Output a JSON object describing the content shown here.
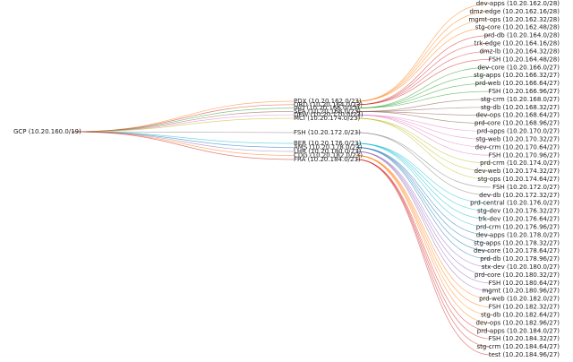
{
  "tree": {
    "label": "GCP (10.20.160.0/19)",
    "children": [
      {
        "label": "PDX (10.20.162.0/23)",
        "color": "#ff7f0e",
        "children": [
          {
            "label": "dev-apps (10.20.162.0/28)"
          },
          {
            "label": "dmz-edge (10.20.162.16/28)"
          },
          {
            "label": "mgmt-ops (10.20.162.32/28)"
          },
          {
            "label": "stg-core (10.20.162.48/28)"
          }
        ]
      },
      {
        "label": "ORD (10.20.164.0/23)",
        "color": "#d62728",
        "children": [
          {
            "label": "prd-db (10.20.164.0/28)"
          },
          {
            "label": "trk-edge (10.20.164.16/28)"
          },
          {
            "label": "dmz-lb (10.20.164.32/28)"
          },
          {
            "label": "FSH (10.20.164.48/28)"
          }
        ]
      },
      {
        "label": "IAD (10.20.166.0/23)",
        "color": "#2ca02c",
        "children": [
          {
            "label": "dev-core (10.20.166.0/27)"
          },
          {
            "label": "stg-apps (10.20.166.32/27)"
          },
          {
            "label": "prd-web (10.20.166.64/27)"
          },
          {
            "label": "FSH (10.20.166.96/27)"
          }
        ]
      },
      {
        "label": "SEA (10.20.168.0/23)",
        "color": "#8c564b",
        "children": [
          {
            "label": "stg-crm (10.20.168.0/27)"
          },
          {
            "label": "stg-db (10.20.168.32/27)"
          },
          {
            "label": "dev-ops (10.20.168.64/27)"
          },
          {
            "label": "prd-core (10.20.168.96/27)"
          }
        ]
      },
      {
        "label": "DFW (10.20.170.0/23)",
        "color": "#e377c2",
        "children": [
          {
            "label": "prd-apps (10.20.170.0/27)"
          },
          {
            "label": "stg-web (10.20.170.32/27)"
          },
          {
            "label": "dev-crm (10.20.170.64/27)"
          },
          {
            "label": "FSH (10.20.170.96/27)"
          }
        ]
      },
      {
        "label": "MCI (10.20.174.0/23)",
        "color": "#bcbd22",
        "children": [
          {
            "label": "prd-crm (10.20.174.0/27)"
          },
          {
            "label": "dev-web (10.20.174.32/27)"
          },
          {
            "label": "stg-ops (10.20.174.64/27)"
          }
        ]
      },
      {
        "label": "FSH (10.20.172.0/23)",
        "color": "#7f7f7f",
        "children": [
          {
            "label": "FSH (10.20.172.0/27)"
          },
          {
            "label": "dev-db (10.20.172.32/27)"
          }
        ]
      },
      {
        "label": "BER (10.20.176.0/23)",
        "color": "#17becf",
        "children": [
          {
            "label": "prd-central (10.20.176.0/27)"
          },
          {
            "label": "stg-dev (10.20.176.32/27)"
          },
          {
            "label": "trk-dev (10.20.176.64/27)"
          },
          {
            "label": "prd-crm (10.20.176.96/27)"
          }
        ]
      },
      {
        "label": "AMS (10.20.178.0/23)",
        "color": "#1f77b4",
        "children": [
          {
            "label": "dev-apps (10.20.178.0/27)"
          },
          {
            "label": "stg-apps (10.20.178.32/27)"
          },
          {
            "label": "dev-core (10.20.178.64/27)"
          },
          {
            "label": "prd-db (10.20.178.96/27)"
          }
        ]
      },
      {
        "label": "LHR (10.20.180.0/23)",
        "color": "#9467bd",
        "children": [
          {
            "label": "stx-dev (10.20.180.0/27)"
          },
          {
            "label": "prd-core (10.20.180.32/27)"
          },
          {
            "label": "FSH (10.20.180.64/27)"
          },
          {
            "label": "mgmt (10.20.180.96/27)"
          }
        ]
      },
      {
        "label": "CDG (10.20.182.0/23)",
        "color": "#ff7f0e",
        "children": [
          {
            "label": "prd-web (10.20.182.0/27)"
          },
          {
            "label": "FSH (10.20.182.32/27)"
          },
          {
            "label": "stg-db (10.20.182.64/27)"
          },
          {
            "label": "dev-ops (10.20.182.96/27)"
          }
        ]
      },
      {
        "label": "FRA (10.20.184.0/23)",
        "color": "#d62728",
        "children": [
          {
            "label": "prd-apps (10.20.184.0/27)"
          },
          {
            "label": "FSH (10.20.184.32/27)"
          },
          {
            "label": "stg-crm (10.20.184.64/27)"
          },
          {
            "label": "test (10.20.184.96/27)"
          }
        ]
      }
    ]
  }
}
